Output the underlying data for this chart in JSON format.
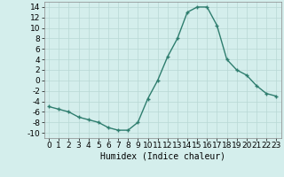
{
  "x": [
    0,
    1,
    2,
    3,
    4,
    5,
    6,
    7,
    8,
    9,
    10,
    11,
    12,
    13,
    14,
    15,
    16,
    17,
    18,
    19,
    20,
    21,
    22,
    23
  ],
  "y": [
    -5,
    -5.5,
    -6,
    -7,
    -7.5,
    -8,
    -9,
    -9.5,
    -9.5,
    -8,
    -3.5,
    0,
    4.5,
    8,
    13,
    14,
    14,
    10.5,
    4,
    2,
    1,
    -1,
    -2.5,
    -3
  ],
  "line_color": "#2e7d6e",
  "marker_color": "#2e7d6e",
  "bg_color": "#d4eeec",
  "grid_color": "#b8d8d4",
  "xlabel": "Humidex (Indice chaleur)",
  "xlabel_fontsize": 7,
  "ylim": [
    -11,
    15
  ],
  "xlim": [
    -0.5,
    23.5
  ],
  "yticks": [
    -10,
    -8,
    -6,
    -4,
    -2,
    0,
    2,
    4,
    6,
    8,
    10,
    12,
    14
  ],
  "xticks": [
    0,
    1,
    2,
    3,
    4,
    5,
    6,
    7,
    8,
    9,
    10,
    11,
    12,
    13,
    14,
    15,
    16,
    17,
    18,
    19,
    20,
    21,
    22,
    23
  ],
  "tick_fontsize": 6.5
}
